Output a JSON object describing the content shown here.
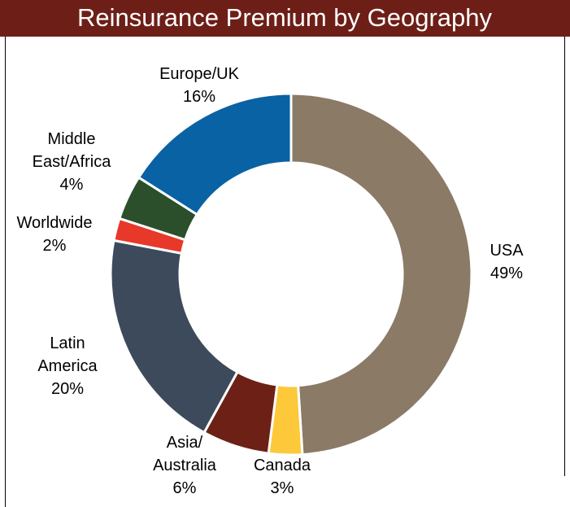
{
  "chart_data": {
    "type": "donut",
    "title": "Reinsurance Premium by Geography",
    "categories": [
      "USA",
      "Canada",
      "Asia/ Australia",
      "Latin America",
      "Worldwide",
      "Middle East/Africa",
      "Europe/UK"
    ],
    "values": [
      49,
      3,
      6,
      20,
      2,
      4,
      16
    ],
    "value_labels": [
      "49%",
      "3%",
      "6%",
      "20%",
      "2%",
      "4%",
      "16%"
    ],
    "colors": [
      "#8b7a66",
      "#fdc93a",
      "#6d2016",
      "#3d4a5c",
      "#e8382a",
      "#2c4f2b",
      "#0962a3"
    ]
  }
}
